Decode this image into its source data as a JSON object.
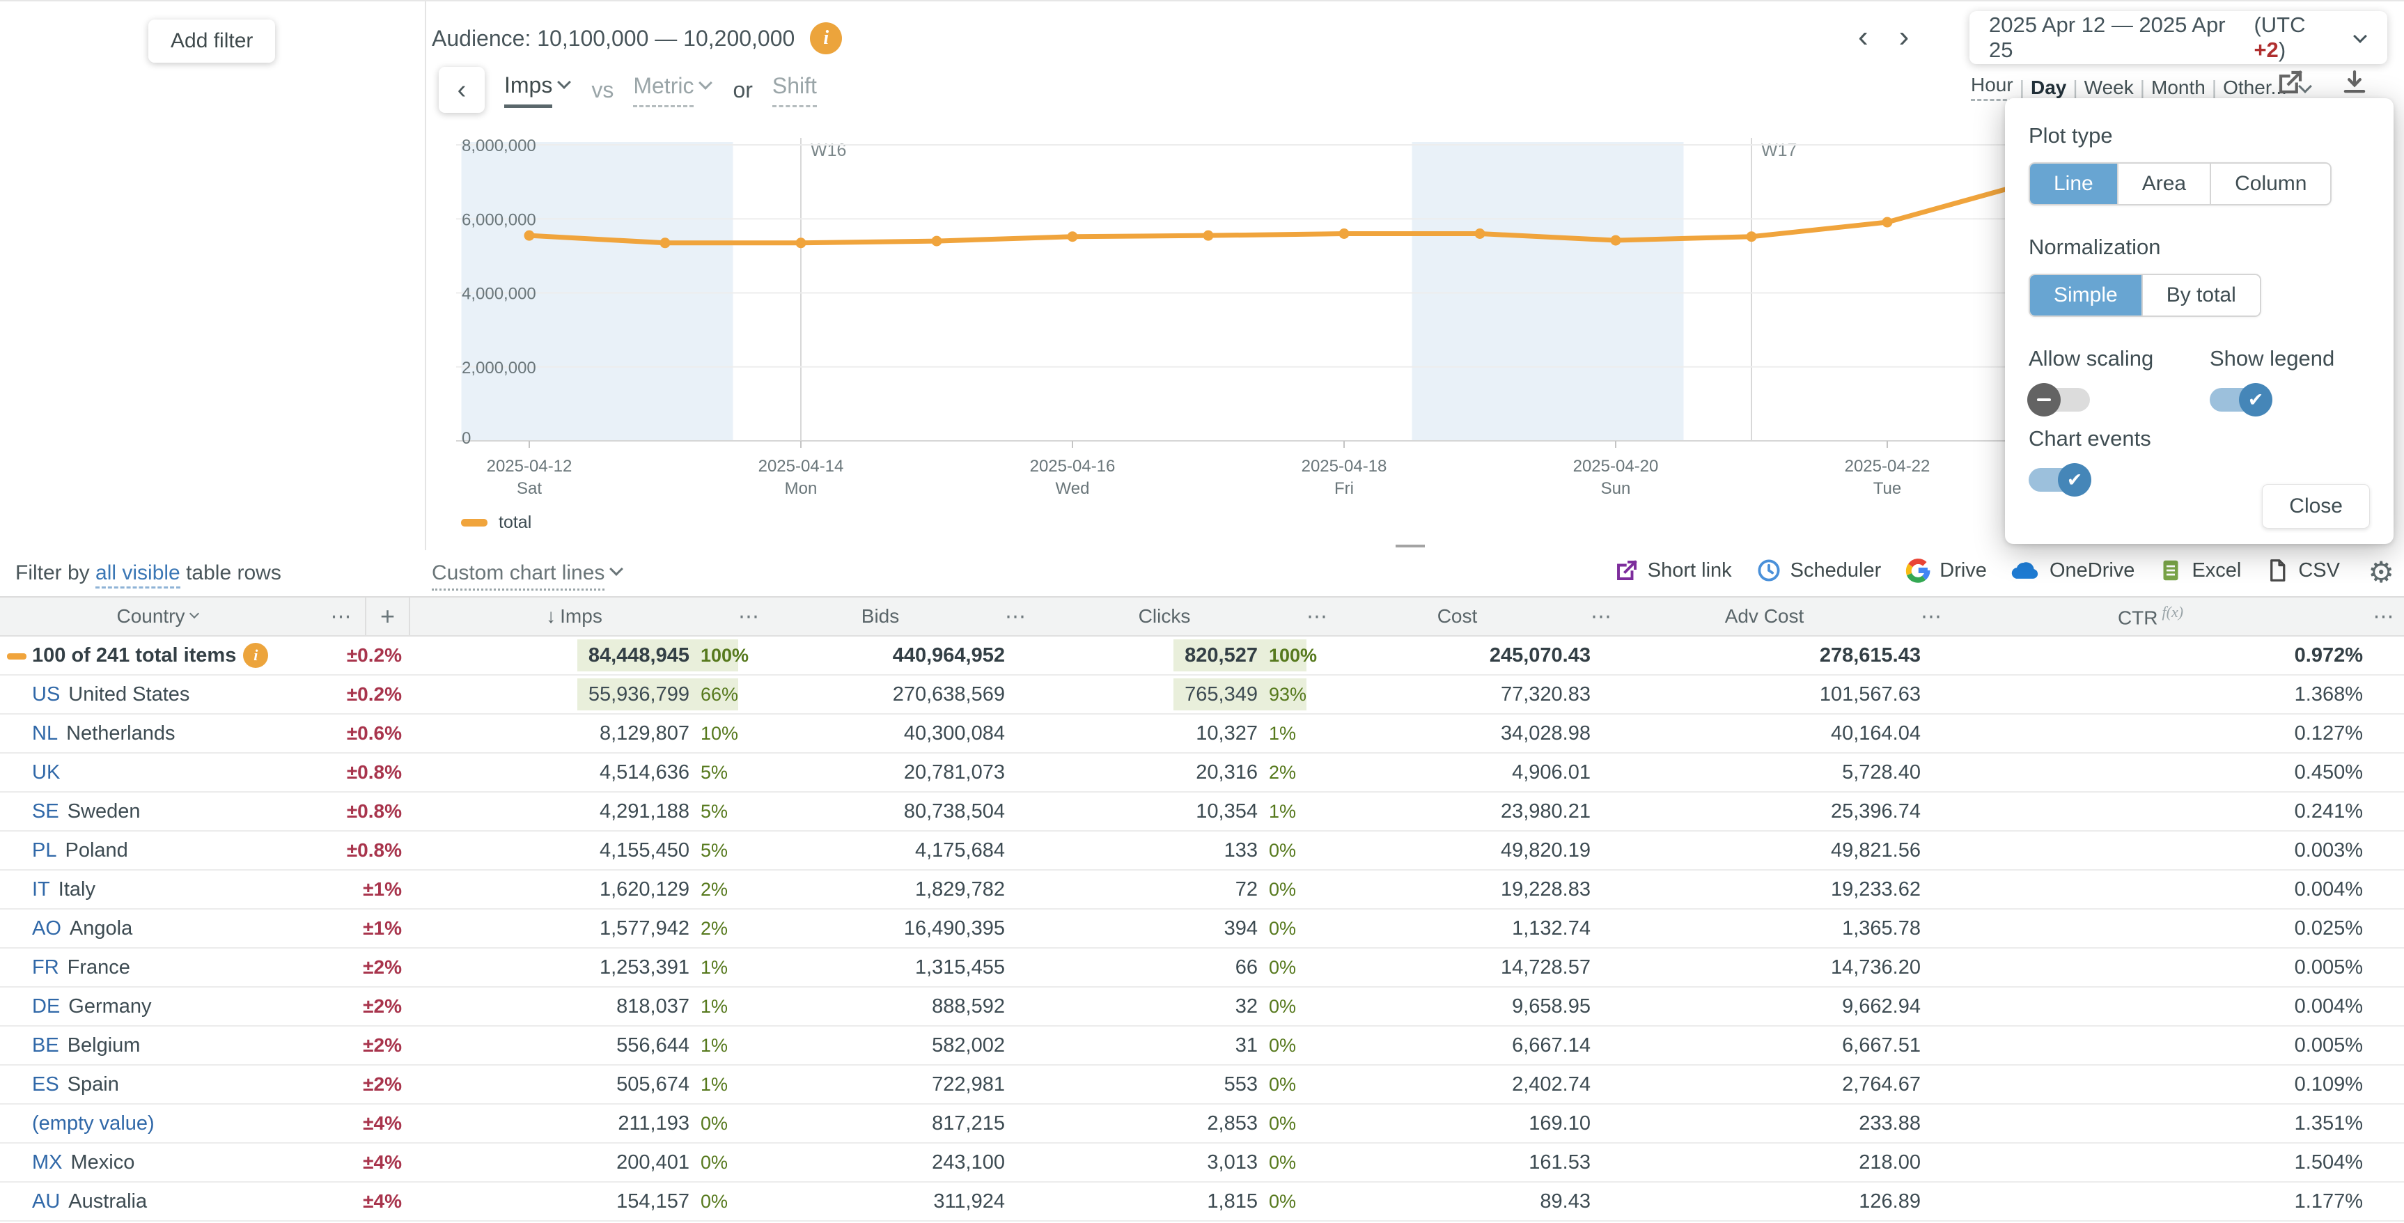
{
  "colors": {
    "series_orange": "#f0a43c",
    "accent_blue": "#68a5d2",
    "link_blue": "#3068a8",
    "negative_red": "#a8344c",
    "percent_green": "#56791d",
    "highlight_green_bg": "#e9efdb",
    "weekend_band": "#e9f1f8"
  },
  "filter_panel": {
    "add_filter_label": "Add filter"
  },
  "header": {
    "audience_label": "Audience: 10,100,000 — 10,200,000",
    "prev_icon": "‹",
    "next_icon": "›",
    "date_range": "2025 Apr 12 — 2025 Apr 25",
    "utc_prefix": "(UTC ",
    "utc_offset": "+2",
    "utc_suffix": ")"
  },
  "series_controls": {
    "back_icon": "‹",
    "primary_metric": "Imps",
    "vs_label": "vs",
    "secondary_metric": "Metric",
    "or_label": "or",
    "shift_label": "Shift"
  },
  "granularity": {
    "options": [
      "Hour",
      "Day",
      "Week",
      "Month",
      "Other..."
    ],
    "selected": "Day",
    "separator": "|"
  },
  "chart_data": {
    "type": "line",
    "title": "",
    "xlabel": "",
    "ylabel": "",
    "ylim": [
      0,
      8000000
    ],
    "grid": true,
    "legend_position": "bottom-left",
    "dates": [
      "2025-04-12",
      "2025-04-13",
      "2025-04-14",
      "2025-04-15",
      "2025-04-16",
      "2025-04-17",
      "2025-04-18",
      "2025-04-19",
      "2025-04-20",
      "2025-04-21",
      "2025-04-22",
      "2025-04-23"
    ],
    "series": [
      {
        "name": "total",
        "color": "#f0a43c",
        "values": [
          5550000,
          5350000,
          5350000,
          5400000,
          5520000,
          5550000,
          5600000,
          5600000,
          5420000,
          5520000,
          5910000,
          6930000
        ]
      }
    ],
    "x_ticks": [
      {
        "index": 0,
        "date": "2025-04-12",
        "day": "Sat"
      },
      {
        "index": 2,
        "date": "2025-04-14",
        "day": "Mon"
      },
      {
        "index": 4,
        "date": "2025-04-16",
        "day": "Wed"
      },
      {
        "index": 6,
        "date": "2025-04-18",
        "day": "Fri"
      },
      {
        "index": 8,
        "date": "2025-04-20",
        "day": "Sun"
      },
      {
        "index": 10,
        "date": "2025-04-22",
        "day": "Tue"
      }
    ],
    "y_ticks": [
      {
        "value": 0,
        "label": "0"
      },
      {
        "value": 2000000,
        "label": "2,000,000"
      },
      {
        "value": 4000000,
        "label": "4,000,000"
      },
      {
        "value": 6000000,
        "label": "6,000,000"
      },
      {
        "value": 8000000,
        "label": "8,000,000"
      }
    ],
    "week_markers": [
      {
        "index": 2,
        "label": "W16"
      },
      {
        "index": 9,
        "label": "W17"
      }
    ],
    "weekend_bands": [
      [
        0,
        1
      ],
      [
        7,
        8
      ]
    ],
    "legend": [
      {
        "name": "total",
        "color": "#f0a43c"
      }
    ]
  },
  "popover": {
    "plot_type": {
      "label": "Plot type",
      "options": [
        "Line",
        "Area",
        "Column"
      ],
      "selected": "Line"
    },
    "normalization": {
      "label": "Normalization",
      "options": [
        "Simple",
        "By total"
      ],
      "selected": "Simple"
    },
    "toggles": [
      {
        "label": "Allow scaling",
        "on": false
      },
      {
        "label": "Show legend",
        "on": true
      },
      {
        "label": "Chart events",
        "on": true
      }
    ],
    "close_label": "Close"
  },
  "table_bar": {
    "filter_prefix": "Filter by",
    "filter_link": "all visible",
    "filter_suffix": "table rows",
    "custom_chart_lines_label": "Custom chart lines",
    "actions": [
      {
        "label": "Short link",
        "icon": "external-link-icon"
      },
      {
        "label": "Scheduler",
        "icon": "clock-icon"
      },
      {
        "label": "Drive",
        "icon": "google-drive-icon"
      },
      {
        "label": "OneDrive",
        "icon": "onedrive-cloud-icon"
      },
      {
        "label": "Excel",
        "icon": "excel-icon"
      },
      {
        "label": "CSV",
        "icon": "csv-file-icon"
      }
    ]
  },
  "table": {
    "columns": {
      "country": "Country",
      "imps": "Imps",
      "bids": "Bids",
      "clicks": "Clicks",
      "cost": "Cost",
      "adv_cost": "Adv Cost",
      "ctr": "CTR",
      "ctr_sup": "f(x)",
      "sort_icon": "↓",
      "menu_icon": "⋯",
      "add_column_icon": "+"
    },
    "rows": [
      {
        "total": true,
        "chip": true,
        "code": "",
        "name": "100 of 241 total items",
        "info": true,
        "pm": "±0.2%",
        "imps": "84,448,945",
        "imps_pct": "100%",
        "imps_hl": true,
        "bids": "440,964,952",
        "clicks": "820,527",
        "clicks_pct": "100%",
        "clicks_hl": true,
        "cost": "245,070.43",
        "adv_cost": "278,615.43",
        "ctr": "0.972%"
      },
      {
        "code": "US",
        "name": "United States",
        "pm": "±0.2%",
        "imps": "55,936,799",
        "imps_pct": "66%",
        "imps_hl": true,
        "bids": "270,638,569",
        "clicks": "765,349",
        "clicks_pct": "93%",
        "clicks_hl": true,
        "cost": "77,320.83",
        "adv_cost": "101,567.63",
        "ctr": "1.368%"
      },
      {
        "code": "NL",
        "name": "Netherlands",
        "pm": "±0.6%",
        "imps": "8,129,807",
        "imps_pct": "10%",
        "bids": "40,300,084",
        "clicks": "10,327",
        "clicks_pct": "1%",
        "cost": "34,028.98",
        "adv_cost": "40,164.04",
        "ctr": "0.127%"
      },
      {
        "code": "UK",
        "name": "",
        "pm": "±0.8%",
        "imps": "4,514,636",
        "imps_pct": "5%",
        "bids": "20,781,073",
        "clicks": "20,316",
        "clicks_pct": "2%",
        "cost": "4,906.01",
        "adv_cost": "5,728.40",
        "ctr": "0.450%"
      },
      {
        "code": "SE",
        "name": "Sweden",
        "pm": "±0.8%",
        "imps": "4,291,188",
        "imps_pct": "5%",
        "bids": "80,738,504",
        "clicks": "10,354",
        "clicks_pct": "1%",
        "cost": "23,980.21",
        "adv_cost": "25,396.74",
        "ctr": "0.241%"
      },
      {
        "code": "PL",
        "name": "Poland",
        "pm": "±0.8%",
        "imps": "4,155,450",
        "imps_pct": "5%",
        "bids": "4,175,684",
        "clicks": "133",
        "clicks_pct": "0%",
        "cost": "49,820.19",
        "adv_cost": "49,821.56",
        "ctr": "0.003%"
      },
      {
        "code": "IT",
        "name": "Italy",
        "pm": "±1%",
        "imps": "1,620,129",
        "imps_pct": "2%",
        "bids": "1,829,782",
        "clicks": "72",
        "clicks_pct": "0%",
        "cost": "19,228.83",
        "adv_cost": "19,233.62",
        "ctr": "0.004%"
      },
      {
        "code": "AO",
        "name": "Angola",
        "pm": "±1%",
        "imps": "1,577,942",
        "imps_pct": "2%",
        "bids": "16,490,395",
        "clicks": "394",
        "clicks_pct": "0%",
        "cost": "1,132.74",
        "adv_cost": "1,365.78",
        "ctr": "0.025%"
      },
      {
        "code": "FR",
        "name": "France",
        "pm": "±2%",
        "imps": "1,253,391",
        "imps_pct": "1%",
        "bids": "1,315,455",
        "clicks": "66",
        "clicks_pct": "0%",
        "cost": "14,728.57",
        "adv_cost": "14,736.20",
        "ctr": "0.005%"
      },
      {
        "code": "DE",
        "name": "Germany",
        "pm": "±2%",
        "imps": "818,037",
        "imps_pct": "1%",
        "bids": "888,592",
        "clicks": "32",
        "clicks_pct": "0%",
        "cost": "9,658.95",
        "adv_cost": "9,662.94",
        "ctr": "0.004%"
      },
      {
        "code": "BE",
        "name": "Belgium",
        "pm": "±2%",
        "imps": "556,644",
        "imps_pct": "1%",
        "bids": "582,002",
        "clicks": "31",
        "clicks_pct": "0%",
        "cost": "6,667.14",
        "adv_cost": "6,667.51",
        "ctr": "0.005%"
      },
      {
        "code": "ES",
        "name": "Spain",
        "pm": "±2%",
        "imps": "505,674",
        "imps_pct": "1%",
        "bids": "722,981",
        "clicks": "553",
        "clicks_pct": "0%",
        "cost": "2,402.74",
        "adv_cost": "2,764.67",
        "ctr": "0.109%"
      },
      {
        "code": "",
        "name": "(empty value)",
        "empty_value": true,
        "pm": "±4%",
        "imps": "211,193",
        "imps_pct": "0%",
        "bids": "817,215",
        "clicks": "2,853",
        "clicks_pct": "0%",
        "cost": "169.10",
        "adv_cost": "233.88",
        "ctr": "1.351%"
      },
      {
        "code": "MX",
        "name": "Mexico",
        "pm": "±4%",
        "imps": "200,401",
        "imps_pct": "0%",
        "bids": "243,100",
        "clicks": "3,013",
        "clicks_pct": "0%",
        "cost": "161.53",
        "adv_cost": "218.00",
        "ctr": "1.504%"
      },
      {
        "code": "AU",
        "name": "Australia",
        "pm": "±4%",
        "imps": "154,157",
        "imps_pct": "0%",
        "bids": "311,924",
        "clicks": "1,815",
        "clicks_pct": "0%",
        "cost": "89.43",
        "adv_cost": "126.89",
        "ctr": "1.177%"
      }
    ]
  }
}
